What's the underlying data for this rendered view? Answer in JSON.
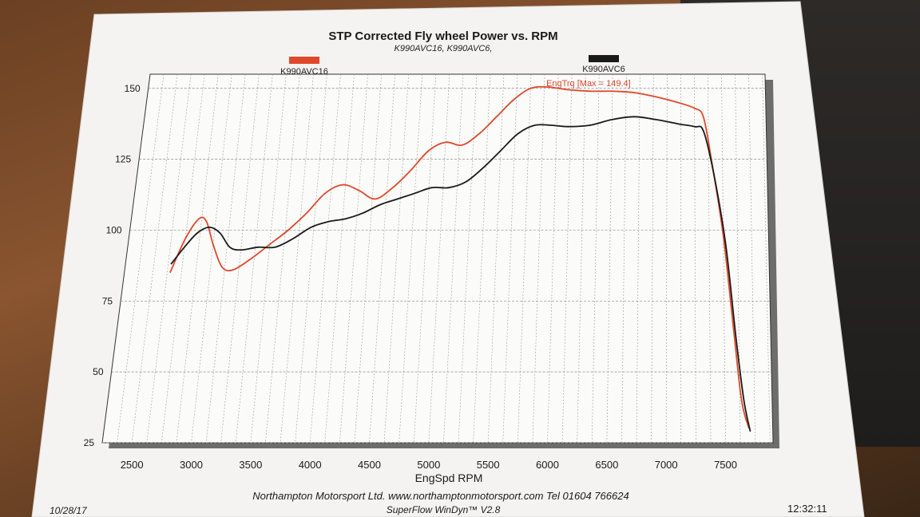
{
  "header": {
    "title": "STP Corrected Fly wheel Power vs. RPM",
    "subtitle": "K990AVC16, K990AVC6,"
  },
  "legend": {
    "items": [
      {
        "label": "K990AVC16",
        "color": "#e0482a"
      },
      {
        "label": "K990AVC6",
        "color": "#1a1a1a"
      }
    ],
    "placement": "top"
  },
  "annotation": "EngTrq [Max = 149.4]",
  "footer": {
    "company": "Northampton Motorsport Ltd. www.northamptonmotorsport.com Tel 01604 766624",
    "software": "SuperFlow WinDyn™ V2.8",
    "date": "10/28/17",
    "time": "12:32:11"
  },
  "chart_data": {
    "type": "line",
    "title": "STP Corrected Fly wheel Power vs. RPM",
    "xlabel": "EngSpd  RPM",
    "ylabel": "",
    "xlim": [
      2250,
      7900
    ],
    "ylim": [
      25,
      155
    ],
    "x_ticks": [
      2500,
      3000,
      3500,
      4000,
      4500,
      5000,
      5500,
      6000,
      6500,
      7000,
      7500
    ],
    "y_ticks": [
      25,
      50,
      75,
      100,
      125,
      150
    ],
    "grid": true,
    "series": [
      {
        "name": "K990AVC16",
        "color": "#e0482a",
        "points": [
          [
            2650,
            85
          ],
          [
            2750,
            97
          ],
          [
            2850,
            104
          ],
          [
            2920,
            103
          ],
          [
            3000,
            95
          ],
          [
            3100,
            87
          ],
          [
            3200,
            86
          ],
          [
            3350,
            90
          ],
          [
            3500,
            95
          ],
          [
            3650,
            100
          ],
          [
            3800,
            106
          ],
          [
            3950,
            113
          ],
          [
            4100,
            116
          ],
          [
            4250,
            114
          ],
          [
            4400,
            111
          ],
          [
            4550,
            115
          ],
          [
            4700,
            121
          ],
          [
            4850,
            128
          ],
          [
            5000,
            131
          ],
          [
            5150,
            130
          ],
          [
            5300,
            134
          ],
          [
            5450,
            140
          ],
          [
            5600,
            146
          ],
          [
            5750,
            150
          ],
          [
            5900,
            150.5
          ],
          [
            6100,
            149.5
          ],
          [
            6300,
            149
          ],
          [
            6500,
            149
          ],
          [
            6700,
            148.5
          ],
          [
            6900,
            147
          ],
          [
            7100,
            145
          ],
          [
            7250,
            143
          ],
          [
            7330,
            140
          ],
          [
            7400,
            125
          ],
          [
            7500,
            98
          ],
          [
            7580,
            65
          ],
          [
            7640,
            40
          ],
          [
            7700,
            30
          ]
        ]
      },
      {
        "name": "K990AVC6",
        "color": "#1a1a1a",
        "points": [
          [
            2650,
            88
          ],
          [
            2750,
            94
          ],
          [
            2850,
            99
          ],
          [
            2950,
            101
          ],
          [
            3050,
            99
          ],
          [
            3150,
            94
          ],
          [
            3250,
            93
          ],
          [
            3400,
            94
          ],
          [
            3550,
            94
          ],
          [
            3700,
            97
          ],
          [
            3850,
            101
          ],
          [
            4000,
            103
          ],
          [
            4150,
            104
          ],
          [
            4300,
            106
          ],
          [
            4450,
            109
          ],
          [
            4600,
            111
          ],
          [
            4750,
            113
          ],
          [
            4900,
            115
          ],
          [
            5050,
            115
          ],
          [
            5200,
            117
          ],
          [
            5350,
            122
          ],
          [
            5500,
            128
          ],
          [
            5650,
            134
          ],
          [
            5800,
            137
          ],
          [
            5950,
            137
          ],
          [
            6100,
            136.5
          ],
          [
            6300,
            137
          ],
          [
            6500,
            139
          ],
          [
            6700,
            140
          ],
          [
            6900,
            139
          ],
          [
            7100,
            137.5
          ],
          [
            7250,
            136.5
          ],
          [
            7330,
            135
          ],
          [
            7420,
            120
          ],
          [
            7520,
            95
          ],
          [
            7600,
            62
          ],
          [
            7660,
            40
          ],
          [
            7710,
            29
          ]
        ]
      }
    ]
  }
}
